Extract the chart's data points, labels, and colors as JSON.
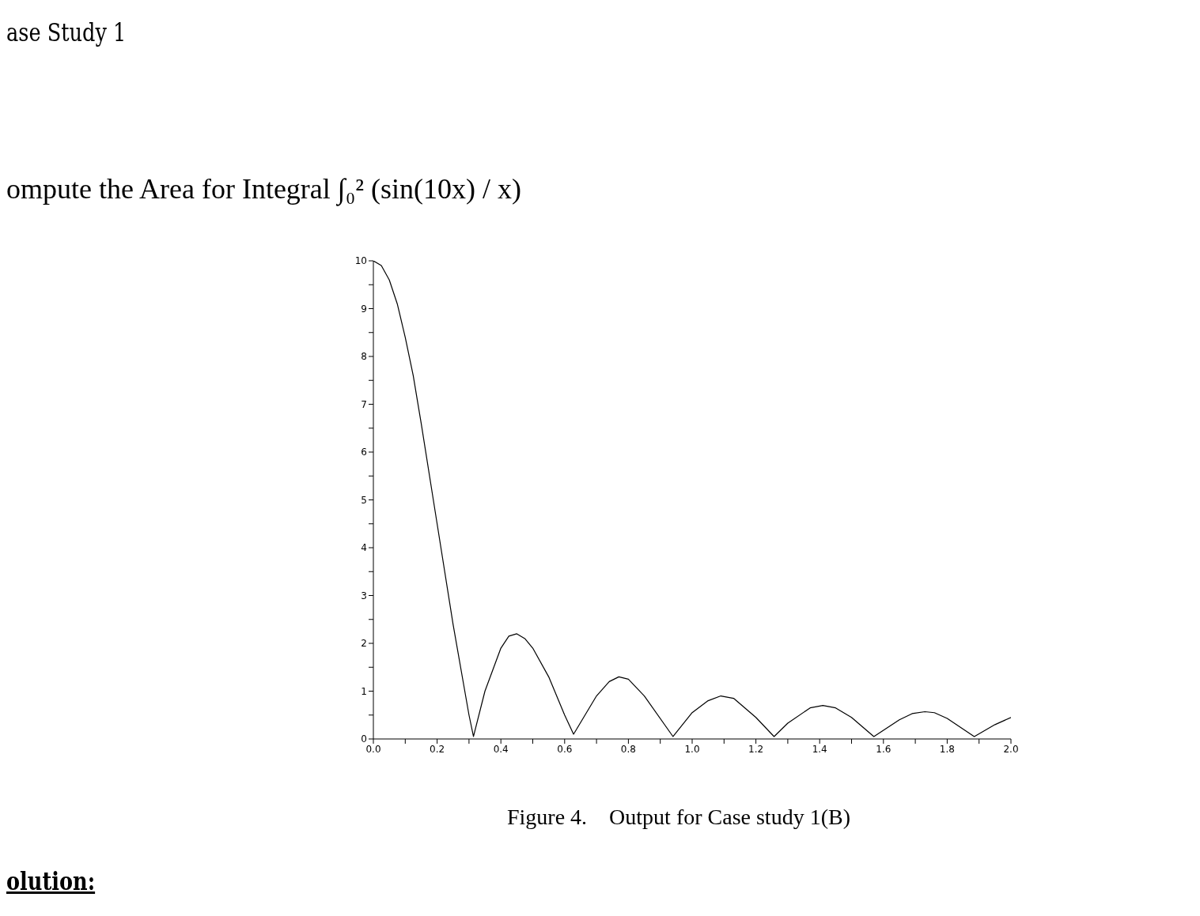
{
  "chart_data": {
    "type": "line",
    "title": "ase Study 1",
    "subtitle": "ompute the Area for Integral ∫₀² (sin(10x) / x)",
    "annotations": [
      "Figure 4.    Output for Case study 1(B)",
      "olution:"
    ],
    "x": [
      0,
      0.025,
      0.05,
      0.075,
      0.1,
      0.125,
      0.15,
      0.2,
      0.25,
      0.3,
      0.314,
      0.35,
      0.4,
      0.425,
      0.45,
      0.475,
      0.5,
      0.55,
      0.6,
      0.628,
      0.7,
      0.74,
      0.77,
      0.8,
      0.85,
      0.94,
      1.0,
      1.05,
      1.09,
      1.13,
      1.2,
      1.257,
      1.3,
      1.37,
      1.41,
      1.45,
      1.5,
      1.57,
      1.65,
      1.69,
      1.73,
      1.76,
      1.8,
      1.885,
      1.95,
      2.0
    ],
    "series": [
      {
        "color": "#000000",
        "values": [
          10,
          9.9,
          9.6,
          9.1,
          8.4,
          7.6,
          6.6,
          4.5,
          2.4,
          0.5,
          0.05,
          1.0,
          1.9,
          2.15,
          2.2,
          2.1,
          1.9,
          1.3,
          0.5,
          0.1,
          0.9,
          1.2,
          1.3,
          1.25,
          0.9,
          0.05,
          0.55,
          0.8,
          0.9,
          0.85,
          0.45,
          0.05,
          0.33,
          0.65,
          0.7,
          0.65,
          0.45,
          0.05,
          0.4,
          0.53,
          0.57,
          0.55,
          0.43,
          0.05,
          0.3,
          0.45
        ]
      }
    ],
    "xlim": [
      0,
      2
    ],
    "xticks": [
      {
        "value": 0,
        "label": "0.0"
      },
      {
        "value": 0.1,
        "label": null
      },
      {
        "value": 0.2,
        "label": "0.2"
      },
      {
        "value": 0.3,
        "label": null
      },
      {
        "value": 0.4,
        "label": "0.4"
      },
      {
        "value": 0.5,
        "label": null
      },
      {
        "value": 0.6,
        "label": "0.6"
      },
      {
        "value": 0.7,
        "label": null
      },
      {
        "value": 0.8,
        "label": "0.8"
      },
      {
        "value": 0.9,
        "label": null
      },
      {
        "value": 1,
        "label": "1.0"
      },
      {
        "value": 1.1,
        "label": null
      },
      {
        "value": 1.2,
        "label": "1.2"
      },
      {
        "value": 1.3,
        "label": null
      },
      {
        "value": 1.4,
        "label": "1.4"
      },
      {
        "value": 1.5,
        "label": null
      },
      {
        "value": 1.6,
        "label": "1.6"
      },
      {
        "value": 1.7,
        "label": null
      },
      {
        "value": 1.8,
        "label": "1.8"
      },
      {
        "value": 1.9,
        "label": null
      },
      {
        "value": 2,
        "label": "2.0"
      }
    ],
    "ylim": [
      0,
      10
    ],
    "yticks": [
      0,
      {
        "value": 0.5,
        "label": null
      },
      1,
      {
        "value": 1.5,
        "label": null
      },
      2,
      {
        "value": 2.5,
        "label": null
      },
      3,
      {
        "value": 3.5,
        "label": null
      },
      4,
      {
        "value": 4.5,
        "label": null
      },
      5,
      {
        "value": 5.5,
        "label": null
      },
      6,
      {
        "value": 6.5,
        "label": null
      },
      7,
      {
        "value": 7.5,
        "label": null
      },
      8,
      {
        "value": 8.5,
        "label": null
      },
      9,
      {
        "value": 9.5,
        "label": null
      },
      10
    ],
    "marker": "none",
    "line_style": "solid"
  }
}
